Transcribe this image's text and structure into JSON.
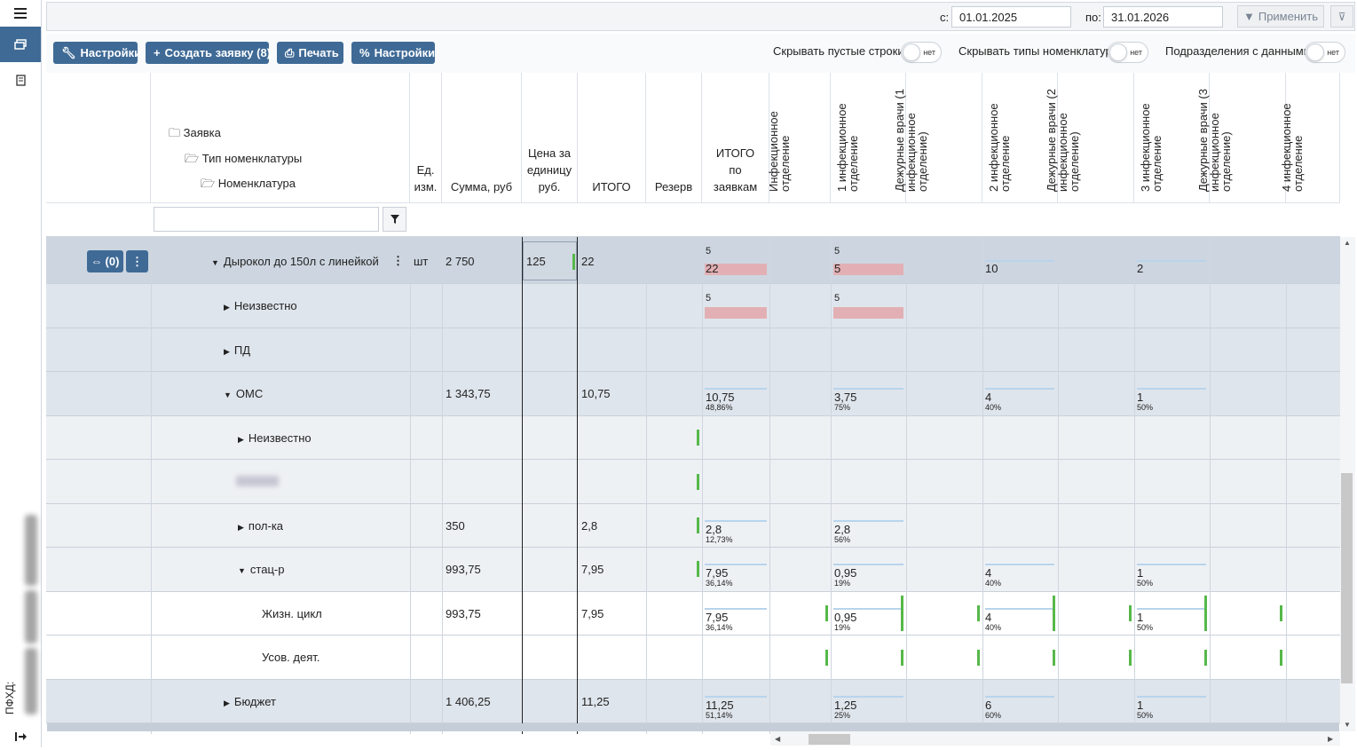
{
  "sidebar": {
    "vertical_label": "ПФХД:",
    "icons": [
      "hamburger-icon",
      "documents-icon",
      "document-icon",
      "exit-icon"
    ]
  },
  "filters": {
    "from_label": "с:",
    "from_value": "01.01.2025",
    "to_label": "по:",
    "to_value": "31.01.2026",
    "apply_label": "Применить"
  },
  "toolbar": {
    "settings_label": "Настройки",
    "create_label": "Создать заявку (8)",
    "print_label": "Печать",
    "percent_settings_label": "Настройки",
    "toggle1_label": "Скрывать пустые строки",
    "toggle1_value": "нет",
    "toggle2_label": "Скрывать типы номенклатур",
    "toggle2_value": "нет",
    "toggle3_label": "Подразделения с данными",
    "toggle3_value": "нет"
  },
  "header": {
    "tree1": "Заявка",
    "tree2": "Тип номенклатуры",
    "tree3": "Номенклатура",
    "unit": "Ед. изм.",
    "sum": "Сумма, руб",
    "price": "Цена за единицу руб.",
    "total": "ИТОГО",
    "reserve": "Резерв",
    "total_by": "ИТОГО по заявкам",
    "depts": [
      "Инфекционное отделение",
      "1 инфекционное отделение",
      "Дежурные врачи (1 инфекционное отделение)",
      "2 инфекционное отделение",
      "Дежурные врачи (2 инфекционное отделение)",
      "3 инфекционное отделение",
      "Дежурные врачи (3 инфекционное отделение)",
      "4 инфекционное отделение"
    ]
  },
  "rows": [
    {
      "name": "Дырокол до 150л с линейкой",
      "unit": "шт",
      "sum": "2 750",
      "price": "125",
      "total": "22",
      "link_label": "(0)",
      "c_total_top": "5",
      "c_total": "22",
      "c1_top": "5",
      "c1": "5",
      "c3": "10",
      "c5": "2"
    },
    {
      "name": "Неизвестно",
      "c_total_top": "5",
      "c1_top": "5"
    },
    {
      "name": "ПД"
    },
    {
      "name": "ОМС",
      "sum": "1 343,75",
      "total": "10,75",
      "c_total": "10,75",
      "c_total_p": "48,86%",
      "c1": "3,75",
      "c1_p": "75%",
      "c3": "4",
      "c3_p": "40%",
      "c5": "1",
      "c5_p": "50%"
    },
    {
      "name": "Неизвестно"
    },
    {
      "name": "пол-ка",
      "sum": "350",
      "total": "2,8",
      "c_total": "2,8",
      "c_total_p": "12,73%",
      "c1": "2,8",
      "c1_p": "56%"
    },
    {
      "name": "стац-р",
      "sum": "993,75",
      "total": "7,95",
      "c_total": "7,95",
      "c_total_p": "36,14%",
      "c1": "0,95",
      "c1_p": "19%",
      "c3": "4",
      "c3_p": "40%",
      "c5": "1",
      "c5_p": "50%"
    },
    {
      "name": "Жизн. цикл",
      "sum": "993,75",
      "total": "7,95",
      "c_total": "7,95",
      "c_total_p": "36,14%",
      "c1": "0,95",
      "c1_p": "19%",
      "c3": "4",
      "c3_p": "40%",
      "c5": "1",
      "c5_p": "50%"
    },
    {
      "name": "Усов. деят."
    },
    {
      "name": "Бюджет",
      "sum": "1 406,25",
      "total": "11,25",
      "c_total": "11,25",
      "c_total_p": "51,14%",
      "c1": "1,25",
      "c1_p": "25%",
      "c3": "6",
      "c3_p": "60%",
      "c5": "1",
      "c5_p": "50%"
    }
  ]
}
